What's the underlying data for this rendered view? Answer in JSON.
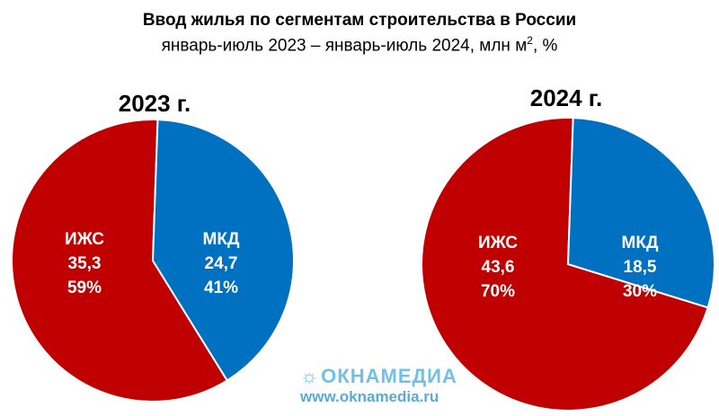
{
  "header": {
    "title": "Ввод жилья по сегментам строительства в России",
    "subtitle_main": "январь-июль 2023 – январь-июль 2024, млн м",
    "subtitle_sup": "2",
    "subtitle_tail": ", %"
  },
  "colors": {
    "izhs": "#c00000",
    "mkd": "#0070c0"
  },
  "chart_data": [
    {
      "type": "pie",
      "title": "2023 г.",
      "slices": [
        {
          "label": "ИЖС",
          "value": 35.3,
          "value_text": "35,3",
          "percent": 59,
          "percent_text": "59%",
          "color": "#c00000"
        },
        {
          "label": "МКД",
          "value": 24.7,
          "value_text": "24,7",
          "percent": 41,
          "percent_text": "41%",
          "color": "#0070c0"
        }
      ]
    },
    {
      "type": "pie",
      "title": "2024 г.",
      "slices": [
        {
          "label": "ИЖС",
          "value": 43.6,
          "value_text": "43,6",
          "percent": 70,
          "percent_text": "70%",
          "color": "#c00000"
        },
        {
          "label": "МКД",
          "value": 18.5,
          "value_text": "18,5",
          "percent": 30,
          "percent_text": "30%",
          "color": "#0070c0"
        }
      ]
    }
  ],
  "watermark": {
    "logo_text": "ОКНАМЕДИА",
    "url": "www.oknamedia.ru",
    "icon": "sun-icon"
  }
}
